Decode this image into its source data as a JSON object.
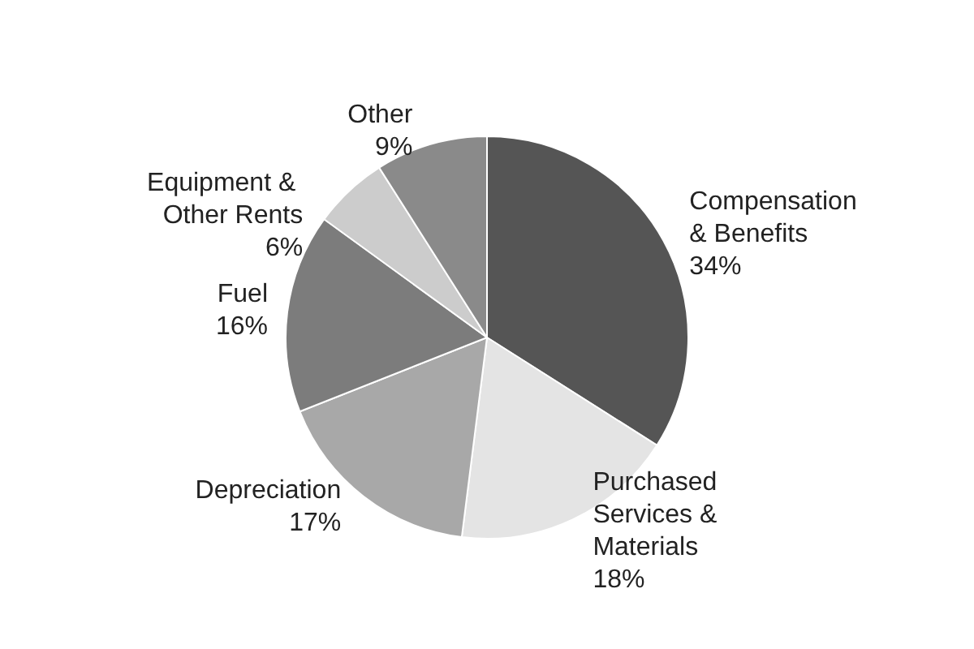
{
  "chart_data": {
    "type": "pie",
    "categories": [
      "Compensation & Benefits",
      "Purchased Services & Materials",
      "Depreciation",
      "Fuel",
      "Equipment & Other Rents",
      "Other"
    ],
    "values": [
      34,
      18,
      17,
      16,
      6,
      9
    ],
    "colors": [
      "#555555",
      "#e4e4e4",
      "#a8a8a8",
      "#7c7c7c",
      "#cccccc",
      "#8a8a8a"
    ],
    "value_labels": [
      "34%",
      "18%",
      "17%",
      "16%",
      "6%",
      "9%"
    ],
    "legend": false
  }
}
